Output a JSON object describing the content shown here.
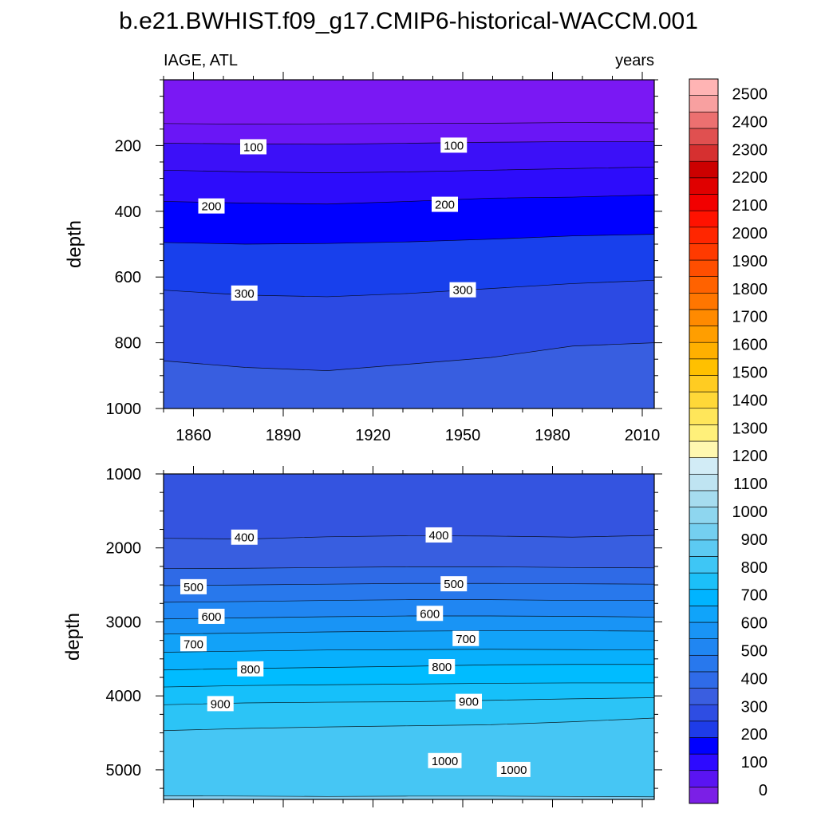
{
  "title": "b.e21.BWHIST.f09_g17.CMIP6-historical-WACCM.001",
  "colorbar": {
    "labels": [
      "0",
      "100",
      "200",
      "300",
      "400",
      "500",
      "600",
      "700",
      "800",
      "900",
      "1000",
      "1100",
      "1200",
      "1300",
      "1400",
      "1500",
      "1600",
      "1700",
      "1800",
      "1900",
      "2000",
      "2100",
      "2200",
      "2300",
      "2400",
      "2500"
    ],
    "colors": [
      "#7b1fe6",
      "#5a14f2",
      "#2d0aff",
      "#0000ff",
      "#1e3ce8",
      "#2e4de3",
      "#3a5ee0",
      "#2f6be8",
      "#2878ed",
      "#2086f2",
      "#1994f5",
      "#10a4fa",
      "#00b4ff",
      "#1cc0f8",
      "#3ec6f5",
      "#5ccaf2",
      "#74cff0",
      "#8ed6ef",
      "#a6dcef",
      "#bfe4f2",
      "#d2ecf6",
      "#fff8b0",
      "#fff07a",
      "#ffe65a",
      "#ffd838",
      "#ffcc22",
      "#ffc000",
      "#ffb000",
      "#ff9e00",
      "#ff8a00",
      "#ff7600",
      "#ff6200",
      "#ff4e00",
      "#ff3a00",
      "#ff2600",
      "#ff1200",
      "#f20000",
      "#e00000",
      "#cc0000",
      "#d63030",
      "#e05050",
      "#ec7070",
      "#f8a0a0",
      "#ffb4b4"
    ]
  },
  "chart_data": [
    {
      "type": "heatmap",
      "subplot": "upper",
      "left_label": "IAGE, ATL",
      "right_label": "years",
      "ylabel": "depth",
      "xlim": [
        1850,
        2014
      ],
      "ylim": [
        0,
        1000
      ],
      "y_inverted": true,
      "xticks": [
        1860,
        1890,
        1920,
        1950,
        1980,
        2010
      ],
      "xtick_labels": [
        "1860",
        "1890",
        "1920",
        "1950",
        "1980",
        "2010"
      ],
      "yticks": [
        200,
        400,
        600,
        800,
        1000
      ],
      "ytick_labels": [
        "200",
        "400",
        "600",
        "800",
        "1000"
      ],
      "contour_levels": [
        50,
        100,
        150,
        200,
        250,
        300,
        350
      ],
      "contour_depths": [
        {
          "level": 50,
          "depth": [
            133,
            135,
            134,
            133,
            132,
            130,
            131
          ]
        },
        {
          "level": 100,
          "depth": [
            193,
            195,
            196,
            193,
            190,
            188,
            188
          ]
        },
        {
          "level": 150,
          "depth": [
            275,
            280,
            283,
            280,
            275,
            270,
            265
          ]
        },
        {
          "level": 200,
          "depth": [
            370,
            375,
            378,
            370,
            360,
            357,
            350
          ]
        },
        {
          "level": 250,
          "depth": [
            495,
            500,
            498,
            493,
            485,
            475,
            470
          ]
        },
        {
          "level": 300,
          "depth": [
            640,
            655,
            660,
            650,
            635,
            620,
            610
          ]
        },
        {
          "level": 350,
          "depth": [
            855,
            875,
            885,
            865,
            845,
            810,
            800
          ]
        }
      ],
      "contour_labels": [
        {
          "text": "100",
          "x": 1880,
          "depth": 205
        },
        {
          "text": "100",
          "x": 1947,
          "depth": 200
        },
        {
          "text": "200",
          "x": 1866,
          "depth": 385
        },
        {
          "text": "200",
          "x": 1944,
          "depth": 380
        },
        {
          "text": "300",
          "x": 1877,
          "depth": 650
        },
        {
          "text": "300",
          "x": 1950,
          "depth": 640
        }
      ]
    },
    {
      "type": "heatmap",
      "subplot": "lower",
      "ylabel": "depth",
      "xlim": [
        1850,
        2014
      ],
      "ylim": [
        1000,
        5400
      ],
      "y_inverted": true,
      "yticks": [
        1000,
        2000,
        3000,
        4000,
        5000
      ],
      "ytick_labels": [
        "1000",
        "2000",
        "3000",
        "4000",
        "5000"
      ],
      "contour_levels": [
        400,
        450,
        500,
        550,
        600,
        650,
        700,
        750,
        800,
        850,
        900,
        950
      ],
      "contour_depths": [
        {
          "level": 400,
          "depth": [
            1870,
            1880,
            1850,
            1835,
            1840,
            1855,
            1830
          ]
        },
        {
          "level": 450,
          "depth": [
            2280,
            2275,
            2265,
            2255,
            2255,
            2265,
            2270
          ]
        },
        {
          "level": 500,
          "depth": [
            2510,
            2500,
            2490,
            2480,
            2480,
            2485,
            2490
          ]
        },
        {
          "level": 550,
          "depth": [
            2735,
            2725,
            2710,
            2700,
            2700,
            2710,
            2710
          ]
        },
        {
          "level": 600,
          "depth": [
            2960,
            2945,
            2930,
            2920,
            2920,
            2925,
            2935
          ]
        },
        {
          "level": 650,
          "depth": [
            3165,
            3150,
            3135,
            3125,
            3120,
            3120,
            3125
          ]
        },
        {
          "level": 700,
          "depth": [
            3410,
            3395,
            3380,
            3375,
            3370,
            3375,
            3380
          ]
        },
        {
          "level": 750,
          "depth": [
            3650,
            3630,
            3615,
            3600,
            3580,
            3575,
            3575
          ]
        },
        {
          "level": 800,
          "depth": [
            3880,
            3860,
            3850,
            3840,
            3830,
            3825,
            3825
          ]
        },
        {
          "level": 850,
          "depth": [
            4120,
            4095,
            4085,
            4080,
            4060,
            4040,
            4025
          ]
        },
        {
          "level": 900,
          "depth": [
            4470,
            4440,
            4420,
            4405,
            4390,
            4350,
            4300
          ]
        },
        {
          "level": 950,
          "depth": [
            5350,
            5355,
            5360,
            5355,
            5355,
            5360,
            5365
          ]
        }
      ],
      "contour_labels": [
        {
          "text": "400",
          "x": 1877,
          "depth": 1860
        },
        {
          "text": "400",
          "x": 1942,
          "depth": 1830
        },
        {
          "text": "500",
          "x": 1860,
          "depth": 2530
        },
        {
          "text": "500",
          "x": 1947,
          "depth": 2490
        },
        {
          "text": "600",
          "x": 1866,
          "depth": 2930
        },
        {
          "text": "600",
          "x": 1939,
          "depth": 2890
        },
        {
          "text": "700",
          "x": 1860,
          "depth": 3300
        },
        {
          "text": "700",
          "x": 1951,
          "depth": 3230
        },
        {
          "text": "800",
          "x": 1879,
          "depth": 3640
        },
        {
          "text": "800",
          "x": 1943,
          "depth": 3610
        },
        {
          "text": "900",
          "x": 1869,
          "depth": 4110
        },
        {
          "text": "900",
          "x": 1952,
          "depth": 4080
        },
        {
          "text": "1000",
          "x": 1944,
          "depth": 4880
        },
        {
          "text": "1000",
          "x": 1967,
          "depth": 5000
        }
      ]
    }
  ]
}
